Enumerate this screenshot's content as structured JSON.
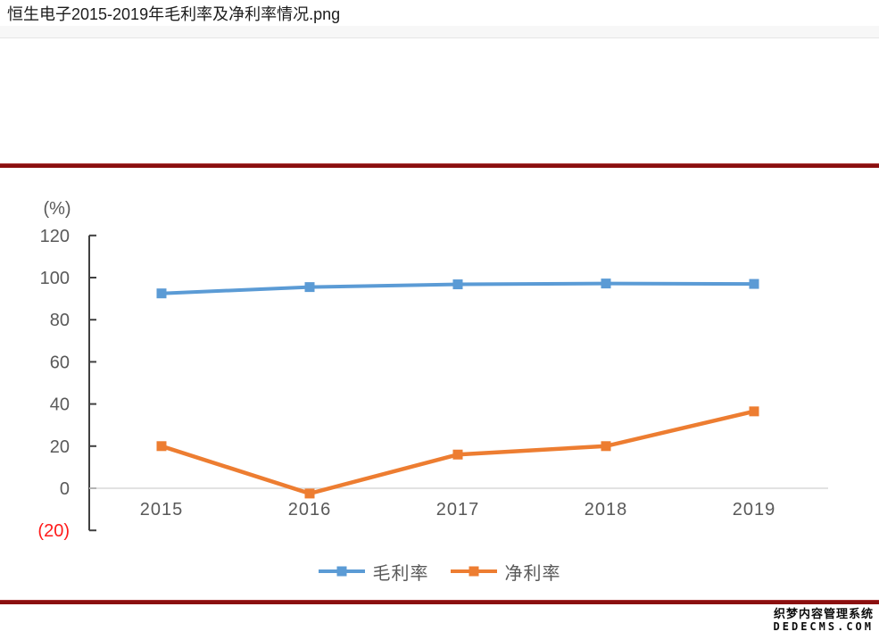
{
  "header": {
    "title": "恒生电子2015-2019年毛利率及净利率情况.png"
  },
  "colors": {
    "series_blue": "#5B9BD5",
    "series_orange": "#ED7D31",
    "axis_line": "#404040",
    "axis_text": "#595959",
    "negative_tick": "#FF1A1A",
    "zero_gridline": "#D9D9D9",
    "divider_red": "#8A0F0F"
  },
  "chart_data": {
    "type": "line",
    "title": "恒生电子2015-2019年毛利率及净利率情况",
    "unit_label": "(%)",
    "xlabel": "",
    "ylabel": "(%)",
    "categories": [
      "2015",
      "2016",
      "2017",
      "2018",
      "2019"
    ],
    "series": [
      {
        "name": "毛利率",
        "color": "#5B9BD5",
        "values": [
          92.5,
          95.5,
          96.8,
          97.2,
          97.0
        ]
      },
      {
        "name": "净利率",
        "color": "#ED7D31",
        "values": [
          20.0,
          -2.5,
          16.0,
          20.0,
          36.5
        ]
      }
    ],
    "ylim": [
      -20,
      120
    ],
    "y_tick_step": 20,
    "y_tick_labels_top_to_bottom": [
      "120",
      "100",
      "80",
      "60",
      "40",
      "20",
      "0",
      "(20)"
    ],
    "grid": "zero-line-only",
    "legend_position": "bottom",
    "marker": "square"
  },
  "watermark": {
    "line1": "织梦内容管理系统",
    "line2": "DEDECMS.COM"
  }
}
